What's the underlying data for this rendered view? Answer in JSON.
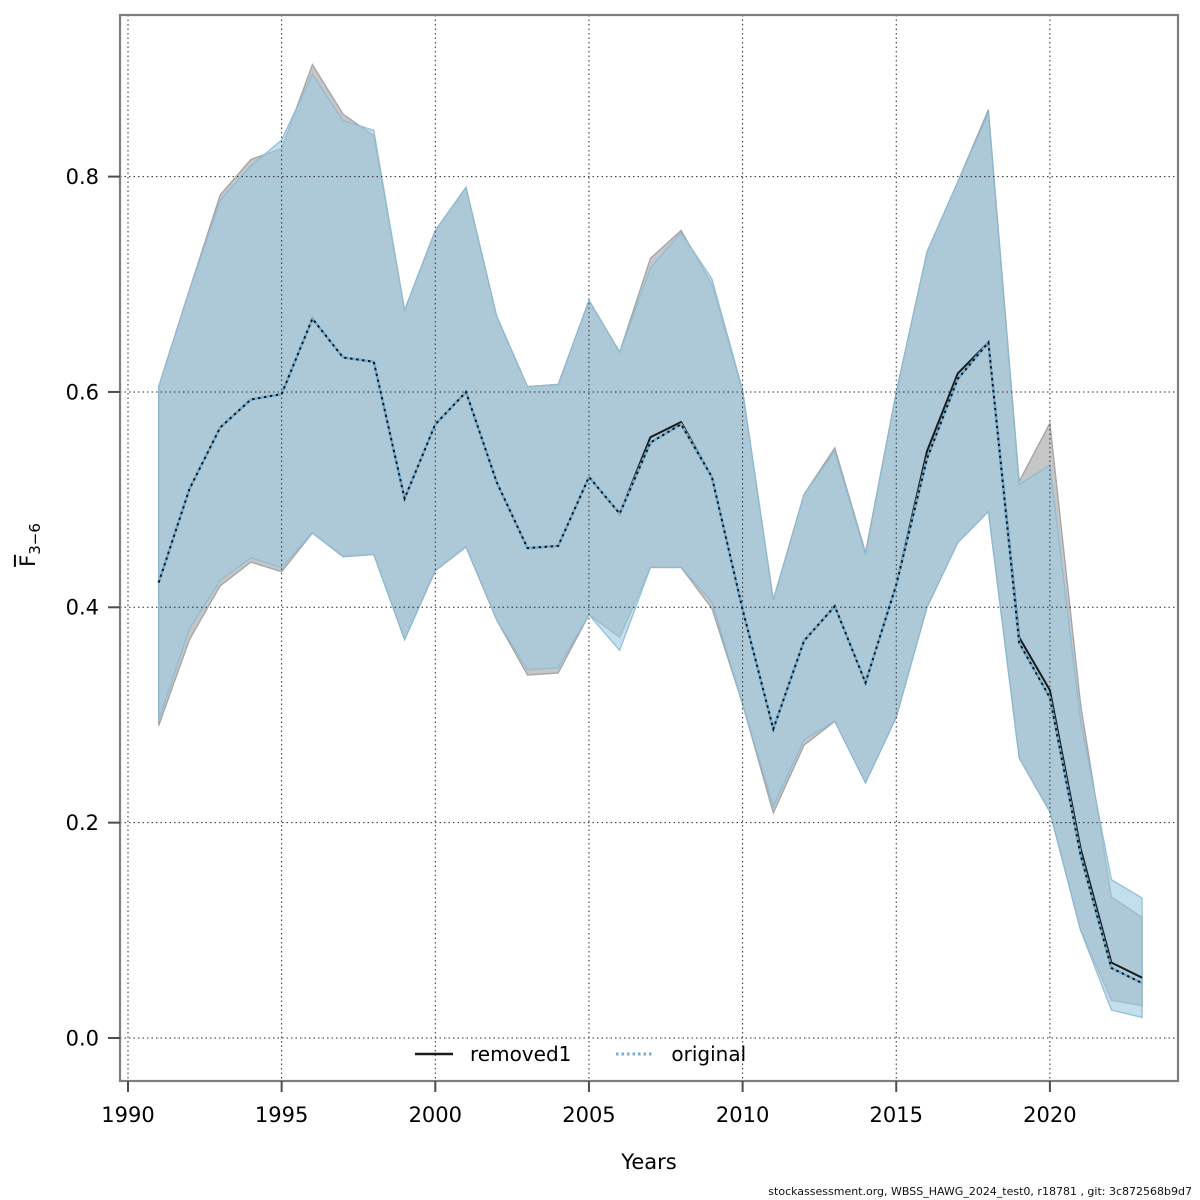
{
  "chart_data": {
    "type": "line",
    "title": "",
    "xlabel": "Years",
    "ylabel": {
      "symbol": "F",
      "overline": true,
      "subscript": "3−6"
    },
    "x_ticks": [
      1990,
      1995,
      2000,
      2005,
      2010,
      2015,
      2020
    ],
    "y_ticks": [
      0.0,
      0.2,
      0.4,
      0.6,
      0.8
    ],
    "y_tick_labels": [
      "0.0",
      "0.2",
      "0.4",
      "0.6",
      "0.8"
    ],
    "xlim": [
      1989.7,
      2024.2
    ],
    "ylim": [
      -0.04,
      0.95
    ],
    "grid": true,
    "legend_position": "bottom",
    "years": [
      1991,
      1992,
      1993,
      1994,
      1995,
      1996,
      1997,
      1998,
      1999,
      2000,
      2001,
      2002,
      2003,
      2004,
      2005,
      2006,
      2007,
      2008,
      2009,
      2010,
      2011,
      2012,
      2013,
      2014,
      2015,
      2016,
      2017,
      2018,
      2019,
      2020,
      2021,
      2022,
      2023
    ],
    "series": [
      {
        "name": "removed1",
        "style": "solid",
        "color": "#1a1a1a",
        "values": [
          0.423,
          0.51,
          0.567,
          0.593,
          0.598,
          0.668,
          0.632,
          0.628,
          0.501,
          0.57,
          0.6,
          0.516,
          0.455,
          0.457,
          0.521,
          0.487,
          0.558,
          0.572,
          0.521,
          0.398,
          0.287,
          0.369,
          0.401,
          0.33,
          0.421,
          0.545,
          0.617,
          0.646,
          0.372,
          0.323,
          0.176,
          0.07,
          0.056
        ]
      },
      {
        "name": "original",
        "style": "dotted",
        "color": "#74aed2",
        "values": [
          0.423,
          0.51,
          0.567,
          0.593,
          0.598,
          0.668,
          0.632,
          0.628,
          0.501,
          0.57,
          0.6,
          0.516,
          0.455,
          0.457,
          0.521,
          0.487,
          0.553,
          0.57,
          0.521,
          0.398,
          0.287,
          0.369,
          0.401,
          0.33,
          0.421,
          0.538,
          0.612,
          0.646,
          0.367,
          0.316,
          0.17,
          0.065,
          0.051
        ]
      }
    ],
    "bands": [
      {
        "name": "removed1 confidence band",
        "fill": "#c6c6c6",
        "edge": "#9d9d9d",
        "opacity": 1,
        "upper": [
          0.605,
          0.695,
          0.783,
          0.816,
          0.826,
          0.904,
          0.858,
          0.838,
          0.676,
          0.75,
          0.79,
          0.67,
          0.605,
          0.607,
          0.685,
          0.637,
          0.724,
          0.75,
          0.7,
          0.6,
          0.407,
          0.505,
          0.548,
          0.451,
          0.6,
          0.73,
          0.795,
          0.862,
          0.517,
          0.571,
          0.31,
          0.131,
          0.112
        ],
        "lower": [
          0.29,
          0.37,
          0.42,
          0.442,
          0.433,
          0.469,
          0.447,
          0.449,
          0.37,
          0.434,
          0.456,
          0.388,
          0.337,
          0.339,
          0.393,
          0.372,
          0.437,
          0.437,
          0.399,
          0.31,
          0.209,
          0.272,
          0.294,
          0.237,
          0.298,
          0.4,
          0.46,
          0.489,
          0.26,
          0.21,
          0.1,
          0.035,
          0.03
        ]
      },
      {
        "name": "original confidence band",
        "fill": "#9ecae1",
        "edge": "#8db9d4",
        "opacity": 0.62,
        "upper": [
          0.605,
          0.695,
          0.778,
          0.81,
          0.834,
          0.895,
          0.852,
          0.843,
          0.676,
          0.75,
          0.79,
          0.67,
          0.605,
          0.607,
          0.685,
          0.637,
          0.715,
          0.748,
          0.705,
          0.602,
          0.407,
          0.505,
          0.545,
          0.449,
          0.6,
          0.73,
          0.795,
          0.859,
          0.514,
          0.532,
          0.295,
          0.147,
          0.13
        ],
        "lower": [
          0.295,
          0.38,
          0.425,
          0.446,
          0.437,
          0.469,
          0.447,
          0.449,
          0.37,
          0.434,
          0.456,
          0.388,
          0.342,
          0.344,
          0.393,
          0.36,
          0.437,
          0.437,
          0.405,
          0.31,
          0.215,
          0.277,
          0.294,
          0.237,
          0.298,
          0.4,
          0.46,
          0.489,
          0.26,
          0.21,
          0.1,
          0.026,
          0.019
        ]
      }
    ]
  },
  "legend": {
    "items": [
      {
        "label": "removed1"
      },
      {
        "label": "original"
      }
    ]
  },
  "footer": {
    "text": "stockassessment.org, WBSS_HAWG_2024_test0, r18781 , git: 3c872568b9d7"
  }
}
